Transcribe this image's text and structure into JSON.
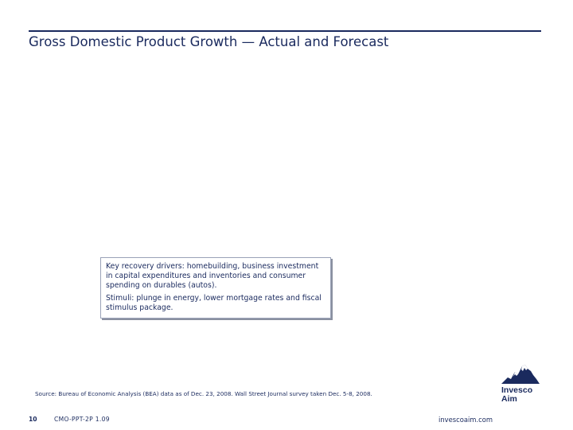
{
  "slide": {
    "title": "Gross Domestic Product Growth — Actual and Forecast"
  },
  "callout": {
    "paragraph1": "Key recovery drivers: homebuilding, business investment in capital expenditures and inventories and consumer spending on durables (autos).",
    "paragraph2": "Stimuli: plunge in energy, lower mortgage rates and fiscal stimulus package."
  },
  "footer": {
    "source": "Source: Bureau of Economic Analysis (BEA) data as of Dec. 23, 2008. Wall Street Journal survey taken Dec. 5-8, 2008.",
    "page_number": "10",
    "document_code": "CMO-PPT-2P 1.09",
    "website": "invescoaim.com"
  },
  "logo": {
    "line1": "Invesco",
    "line2": "Aim",
    "icon": "mountain-peak-icon"
  },
  "colors": {
    "primary_navy": "#1a2a5e"
  }
}
